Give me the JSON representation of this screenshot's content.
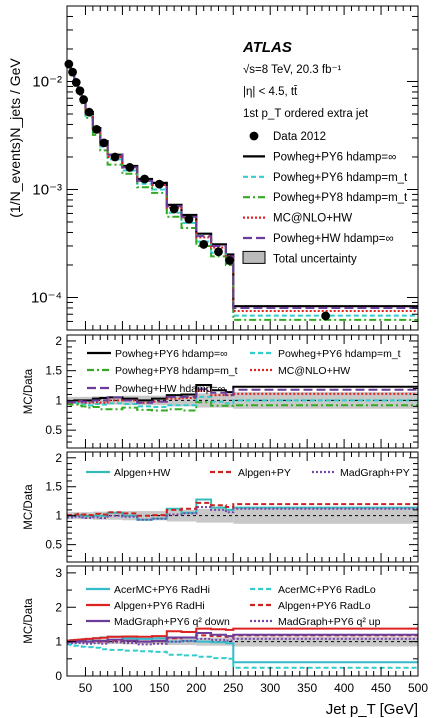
{
  "chart_data": {
    "type": "line",
    "experiment": "ATLAS",
    "annotations": [
      "√s=8 TeV, 20.3 fb⁻¹",
      "|η| < 4.5, tt̄",
      "1st p_T ordered extra jet"
    ],
    "xlabel": "Jet p_T [GeV]",
    "xlim": [
      25,
      500
    ],
    "x_ticks": [
      "50",
      "100",
      "150",
      "200",
      "250",
      "300",
      "350",
      "400",
      "450",
      "500"
    ],
    "bin_edges": [
      25,
      30,
      35,
      40,
      45,
      50,
      60,
      70,
      80,
      100,
      120,
      140,
      160,
      180,
      200,
      220,
      240,
      250,
      500
    ],
    "panels": [
      {
        "ylabel": "(1/N_events)N_jets / GeV",
        "yscale": "log",
        "ylim": [
          5e-05,
          0.05
        ],
        "y_ticks": [
          "10⁻⁴",
          "10⁻³",
          "10⁻²"
        ],
        "data": {
          "name": "Data 2012",
          "x": [
            27.5,
            32.5,
            37.5,
            42.5,
            47.5,
            55,
            65,
            75,
            90,
            110,
            130,
            150,
            170,
            190,
            210,
            230,
            245,
            375
          ],
          "y": [
            0.0145,
            0.0122,
            0.0098,
            0.0082,
            0.0068,
            0.0052,
            0.0036,
            0.0027,
            0.002,
            0.0016,
            0.00125,
            0.00112,
            0.00066,
            0.00053,
            0.00031,
            0.000265,
            0.00022,
            6.75e-05
          ]
        },
        "series": [
          {
            "name": "Powheg+PY6 hdamp=∞",
            "color": "#000000",
            "dash": "solid",
            "values": [
              0.0142,
              0.012,
              0.0098,
              0.0082,
              0.0068,
              0.0052,
              0.0037,
              0.0028,
              0.0021,
              0.00165,
              0.00125,
              0.00115,
              0.00072,
              0.00058,
              0.00039,
              0.00031,
              0.00025,
              8.3e-05
            ]
          },
          {
            "name": "Powheg+PY6 hdamp=m_t",
            "color": "#33cccc",
            "dash": "dashed",
            "values": [
              0.0138,
              0.0116,
              0.0094,
              0.0078,
              0.0064,
              0.0048,
              0.0034,
              0.0025,
              0.0019,
              0.0015,
              0.00113,
              0.001,
              0.00061,
              0.00049,
              0.00033,
              0.00026,
              0.00021,
              6.8e-05
            ]
          },
          {
            "name": "Powheg+PY8 hdamp=m_t",
            "color": "#33aa22",
            "dash": "dashdot",
            "values": [
              0.0136,
              0.0114,
              0.0091,
              0.0075,
              0.0061,
              0.0046,
              0.0032,
              0.0023,
              0.0017,
              0.0014,
              0.00105,
              0.00093,
              0.00056,
              0.00044,
              0.0003,
              0.00024,
              0.0002,
              6.2e-05
            ]
          },
          {
            "name": "MC@NLO+HW",
            "color": "#dd2222",
            "dash": "dotted",
            "values": [
              0.014,
              0.0118,
              0.0096,
              0.008,
              0.0066,
              0.005,
              0.0035,
              0.0026,
              0.002,
              0.0016,
              0.0012,
              0.0011,
              0.00068,
              0.00055,
              0.00036,
              0.00029,
              0.00024,
              7.5e-05
            ]
          },
          {
            "name": "Powheg+HW hdamp=∞",
            "color": "#6a3d9a",
            "dash": "longdash",
            "values": [
              0.0141,
              0.0119,
              0.0097,
              0.0081,
              0.0067,
              0.0051,
              0.0036,
              0.0027,
              0.0021,
              0.0016,
              0.0012,
              0.0011,
              0.0007,
              0.00056,
              0.00037,
              0.0003,
              0.00024,
              8e-05
            ]
          }
        ],
        "legend": [
          "Data 2012",
          "Powheg+PY6 hdamp=∞",
          "Powheg+PY6 hdamp=m_t",
          "Powheg+PY8 hdamp=m_t",
          "MC@NLO+HW",
          "Powheg+HW hdamp=∞",
          "Total uncertainty"
        ]
      },
      {
        "ylabel": "MC/Data",
        "ylim": [
          0.2,
          2.1
        ],
        "y_ticks": [
          "0.5",
          "1",
          "1.5",
          "2"
        ],
        "band": [
          0.06,
          0.06,
          0.06,
          0.06,
          0.06,
          0.06,
          0.07,
          0.07,
          0.07,
          0.08,
          0.08,
          0.08,
          0.1,
          0.1,
          0.12,
          0.12,
          0.12,
          0.14
        ],
        "series": [
          {
            "name": "Powheg+PY6 hdamp=∞",
            "color": "#000000",
            "dash": "solid",
            "values": [
              0.98,
              0.98,
              1.0,
              1.0,
              1.0,
              1.0,
              1.03,
              1.04,
              1.05,
              1.03,
              1.0,
              1.03,
              1.09,
              1.1,
              1.26,
              1.17,
              1.14,
              1.23
            ]
          },
          {
            "name": "Powheg+PY6 hdamp=m_t",
            "color": "#33cccc",
            "dash": "dashed",
            "values": [
              0.95,
              0.95,
              0.96,
              0.95,
              0.94,
              0.92,
              0.94,
              0.93,
              0.95,
              0.94,
              0.9,
              0.89,
              0.92,
              0.92,
              1.06,
              0.98,
              0.95,
              1.0
            ]
          },
          {
            "name": "Powheg+PY8 hdamp=m_t",
            "color": "#33aa22",
            "dash": "dashdot",
            "values": [
              0.94,
              0.93,
              0.93,
              0.91,
              0.9,
              0.88,
              0.89,
              0.85,
              0.85,
              0.88,
              0.84,
              0.83,
              0.85,
              0.83,
              0.97,
              0.91,
              0.91,
              0.92
            ]
          },
          {
            "name": "MC@NLO+HW",
            "color": "#dd2222",
            "dash": "dotted",
            "values": [
              0.96,
              0.96,
              0.98,
              0.98,
              0.97,
              0.96,
              0.97,
              0.96,
              1.0,
              1.0,
              0.96,
              0.98,
              1.03,
              1.04,
              1.16,
              1.09,
              1.09,
              1.11
            ]
          },
          {
            "name": "Powheg+HW hdamp=∞",
            "color": "#6a3d9a",
            "dash": "longdash",
            "values": [
              0.97,
              0.97,
              0.99,
              0.99,
              0.98,
              0.98,
              1.0,
              1.0,
              1.05,
              1.0,
              0.96,
              0.98,
              1.06,
              1.06,
              1.19,
              1.13,
              1.09,
              1.18
            ]
          }
        ],
        "legend": [
          "Powheg+PY6 hdamp=∞",
          "Powheg+PY6 hdamp=m_t",
          "Powheg+PY8 hdamp=m_t",
          "MC@NLO+HW",
          "Powheg+HW hdamp=∞"
        ]
      },
      {
        "ylabel": "MC/Data",
        "ylim": [
          0.2,
          2.1
        ],
        "y_ticks": [
          "0.5",
          "1",
          "1.5",
          "2"
        ],
        "band": [
          0.06,
          0.06,
          0.06,
          0.06,
          0.06,
          0.06,
          0.07,
          0.07,
          0.07,
          0.08,
          0.08,
          0.08,
          0.1,
          0.1,
          0.12,
          0.12,
          0.12,
          0.14
        ],
        "series": [
          {
            "name": "Alpgen+HW",
            "color": "#33bbbb",
            "dash": "solid",
            "values": [
              1.0,
              1.0,
              1.0,
              1.01,
              1.0,
              0.99,
              1.0,
              1.0,
              1.05,
              1.0,
              0.93,
              0.95,
              1.12,
              1.05,
              1.28,
              1.14,
              1.1,
              1.14
            ]
          },
          {
            "name": "Alpgen+PY",
            "color": "#cc2222",
            "dash": "dashed",
            "values": [
              1.01,
              1.01,
              1.02,
              1.03,
              1.02,
              1.01,
              1.03,
              1.02,
              1.06,
              1.04,
              1.0,
              1.01,
              1.1,
              1.12,
              1.22,
              1.18,
              1.15,
              1.2
            ]
          },
          {
            "name": "MadGraph+PY",
            "color": "#7744aa",
            "dash": "dotted",
            "values": [
              0.97,
              0.97,
              0.98,
              0.98,
              0.97,
              0.96,
              0.97,
              0.96,
              1.0,
              0.98,
              0.93,
              0.95,
              1.02,
              1.04,
              1.15,
              1.1,
              1.06,
              1.12
            ]
          }
        ],
        "legend": [
          "Alpgen+HW",
          "Alpgen+PY",
          "MadGraph+PY"
        ]
      },
      {
        "ylabel": "MC/Data",
        "ylim": [
          0,
          3.2
        ],
        "y_ticks": [
          "0",
          "1",
          "2",
          "3"
        ],
        "band": [
          0.06,
          0.06,
          0.06,
          0.06,
          0.06,
          0.06,
          0.07,
          0.07,
          0.07,
          0.08,
          0.08,
          0.08,
          0.1,
          0.1,
          0.12,
          0.12,
          0.12,
          0.14
        ],
        "series": [
          {
            "name": "AcerMC+PY6 RadHi",
            "color": "#33bbcc",
            "dash": "solid",
            "values": [
              1.02,
              1.04,
              1.04,
              1.05,
              1.06,
              1.07,
              1.1,
              1.12,
              1.14,
              1.1,
              1.08,
              1.1,
              1.0,
              1.02,
              1.0,
              0.98,
              0.95,
              0.4
            ]
          },
          {
            "name": "AcerMC+PY6 RadLo",
            "color": "#33cccc",
            "dash": "dashed",
            "values": [
              0.92,
              0.9,
              0.88,
              0.86,
              0.85,
              0.84,
              0.82,
              0.78,
              0.76,
              0.74,
              0.72,
              0.7,
              0.62,
              0.6,
              0.56,
              0.52,
              0.5,
              0.24
            ]
          },
          {
            "name": "Alpgen+PY6 RadHi",
            "color": "#dd2222",
            "dash": "solid",
            "values": [
              1.03,
              1.04,
              1.05,
              1.06,
              1.07,
              1.08,
              1.1,
              1.11,
              1.14,
              1.15,
              1.14,
              1.16,
              1.3,
              1.28,
              1.38,
              1.36,
              1.34,
              1.38
            ]
          },
          {
            "name": "Alpgen+PY6 RadLo",
            "color": "#cc2222",
            "dash": "dashed",
            "values": [
              0.99,
              1.0,
              1.0,
              1.0,
              1.01,
              1.0,
              1.01,
              1.0,
              1.03,
              1.02,
              1.0,
              1.01,
              1.1,
              1.12,
              1.18,
              1.16,
              1.14,
              1.18
            ]
          },
          {
            "name": "MadGraph+PY6 q² down",
            "color": "#6a3d9a",
            "dash": "solid",
            "values": [
              0.99,
              1.0,
              1.0,
              1.01,
              1.01,
              1.0,
              1.02,
              1.02,
              1.06,
              1.03,
              1.0,
              1.02,
              1.12,
              1.12,
              1.25,
              1.2,
              1.16,
              1.2
            ]
          },
          {
            "name": "MadGraph+PY6 q² up",
            "color": "#7744aa",
            "dash": "dotted",
            "values": [
              0.95,
              0.95,
              0.96,
              0.96,
              0.95,
              0.94,
              0.95,
              0.94,
              0.98,
              0.96,
              0.92,
              0.94,
              1.0,
              1.02,
              1.08,
              1.05,
              1.03,
              1.08
            ]
          }
        ],
        "legend": [
          "AcerMC+PY6 RadHi",
          "AcerMC+PY6 RadLo",
          "Alpgen+PY6 RadHi",
          "Alpgen+PY6 RadLo",
          "MadGraph+PY6 q² down",
          "MadGraph+PY6 q² up"
        ]
      }
    ]
  }
}
